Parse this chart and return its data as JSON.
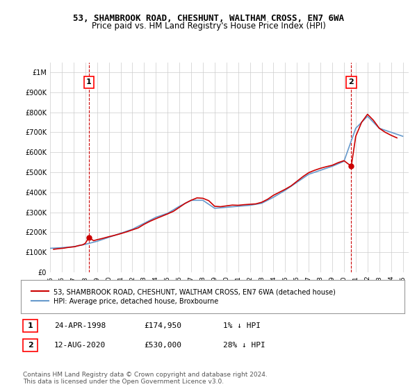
{
  "title_line1": "53, SHAMBROOK ROAD, CHESHUNT, WALTHAM CROSS, EN7 6WA",
  "title_line2": "Price paid vs. HM Land Registry's House Price Index (HPI)",
  "ylabel_ticks": [
    "£0",
    "£100K",
    "£200K",
    "£300K",
    "£400K",
    "£500K",
    "£600K",
    "£700K",
    "£800K",
    "£900K",
    "£1M"
  ],
  "ytick_values": [
    0,
    100000,
    200000,
    300000,
    400000,
    500000,
    600000,
    700000,
    800000,
    900000,
    1000000
  ],
  "ylim": [
    0,
    1050000
  ],
  "xlim_start": 1995.0,
  "xlim_end": 2025.5,
  "hpi_color": "#6699cc",
  "price_color": "#cc0000",
  "marker1_date": 1998.31,
  "marker1_price": 174950,
  "marker2_date": 2020.62,
  "marker2_price": 530000,
  "annotation1_label": "1",
  "annotation2_label": "2",
  "legend_label1": "53, SHAMBROOK ROAD, CHESHUNT, WALTHAM CROSS, EN7 6WA (detached house)",
  "legend_label2": "HPI: Average price, detached house, Broxbourne",
  "table_row1": [
    "1",
    "24-APR-1998",
    "£174,950",
    "1% ↓ HPI"
  ],
  "table_row2": [
    "2",
    "12-AUG-2020",
    "£530,000",
    "28% ↓ HPI"
  ],
  "footer": "Contains HM Land Registry data © Crown copyright and database right 2024.\nThis data is licensed under the Open Government Licence v3.0.",
  "background_color": "#ffffff",
  "grid_color": "#cccccc",
  "x_years": [
    1995,
    1996,
    1997,
    1998,
    1999,
    2000,
    2001,
    2002,
    2003,
    2004,
    2005,
    2006,
    2007,
    2008,
    2009,
    2010,
    2011,
    2012,
    2013,
    2014,
    2015,
    2016,
    2017,
    2018,
    2019,
    2020,
    2021,
    2022,
    2023,
    2024,
    2025
  ],
  "hpi_values": [
    120000,
    123000,
    128000,
    140000,
    155000,
    175000,
    195000,
    215000,
    245000,
    275000,
    295000,
    330000,
    360000,
    360000,
    320000,
    325000,
    330000,
    335000,
    345000,
    375000,
    410000,
    450000,
    490000,
    510000,
    530000,
    555000,
    720000,
    780000,
    720000,
    700000,
    680000
  ],
  "price_paid_dates": [
    1995.3,
    1995.7,
    1996.2,
    1996.5,
    1997.1,
    1997.4,
    1997.8,
    1998.0,
    1998.31,
    1998.7,
    1999.0,
    1999.5,
    2000.0,
    2000.5,
    2001.0,
    2001.5,
    2002.0,
    2002.5,
    2003.0,
    2003.5,
    2004.0,
    2004.5,
    2005.0,
    2005.5,
    2006.0,
    2006.5,
    2007.0,
    2007.5,
    2008.0,
    2008.5,
    2009.0,
    2009.5,
    2010.0,
    2010.5,
    2011.0,
    2011.5,
    2012.0,
    2012.5,
    2013.0,
    2013.5,
    2014.0,
    2014.5,
    2015.0,
    2015.5,
    2016.0,
    2016.5,
    2017.0,
    2017.5,
    2018.0,
    2018.5,
    2019.0,
    2019.5,
    2020.0,
    2020.62,
    2021.0,
    2021.5,
    2022.0,
    2022.5,
    2023.0,
    2023.5,
    2024.0,
    2024.5
  ],
  "price_paid_values": [
    115000,
    118000,
    121000,
    124000,
    128000,
    133000,
    138000,
    145000,
    174950,
    158000,
    163000,
    170000,
    178000,
    185000,
    193000,
    202000,
    212000,
    222000,
    240000,
    255000,
    268000,
    280000,
    292000,
    305000,
    325000,
    345000,
    360000,
    372000,
    370000,
    358000,
    330000,
    328000,
    332000,
    336000,
    335000,
    338000,
    340000,
    342000,
    350000,
    365000,
    385000,
    400000,
    415000,
    432000,
    455000,
    478000,
    498000,
    510000,
    520000,
    528000,
    535000,
    548000,
    558000,
    530000,
    680000,
    750000,
    790000,
    760000,
    720000,
    700000,
    685000,
    672000
  ]
}
